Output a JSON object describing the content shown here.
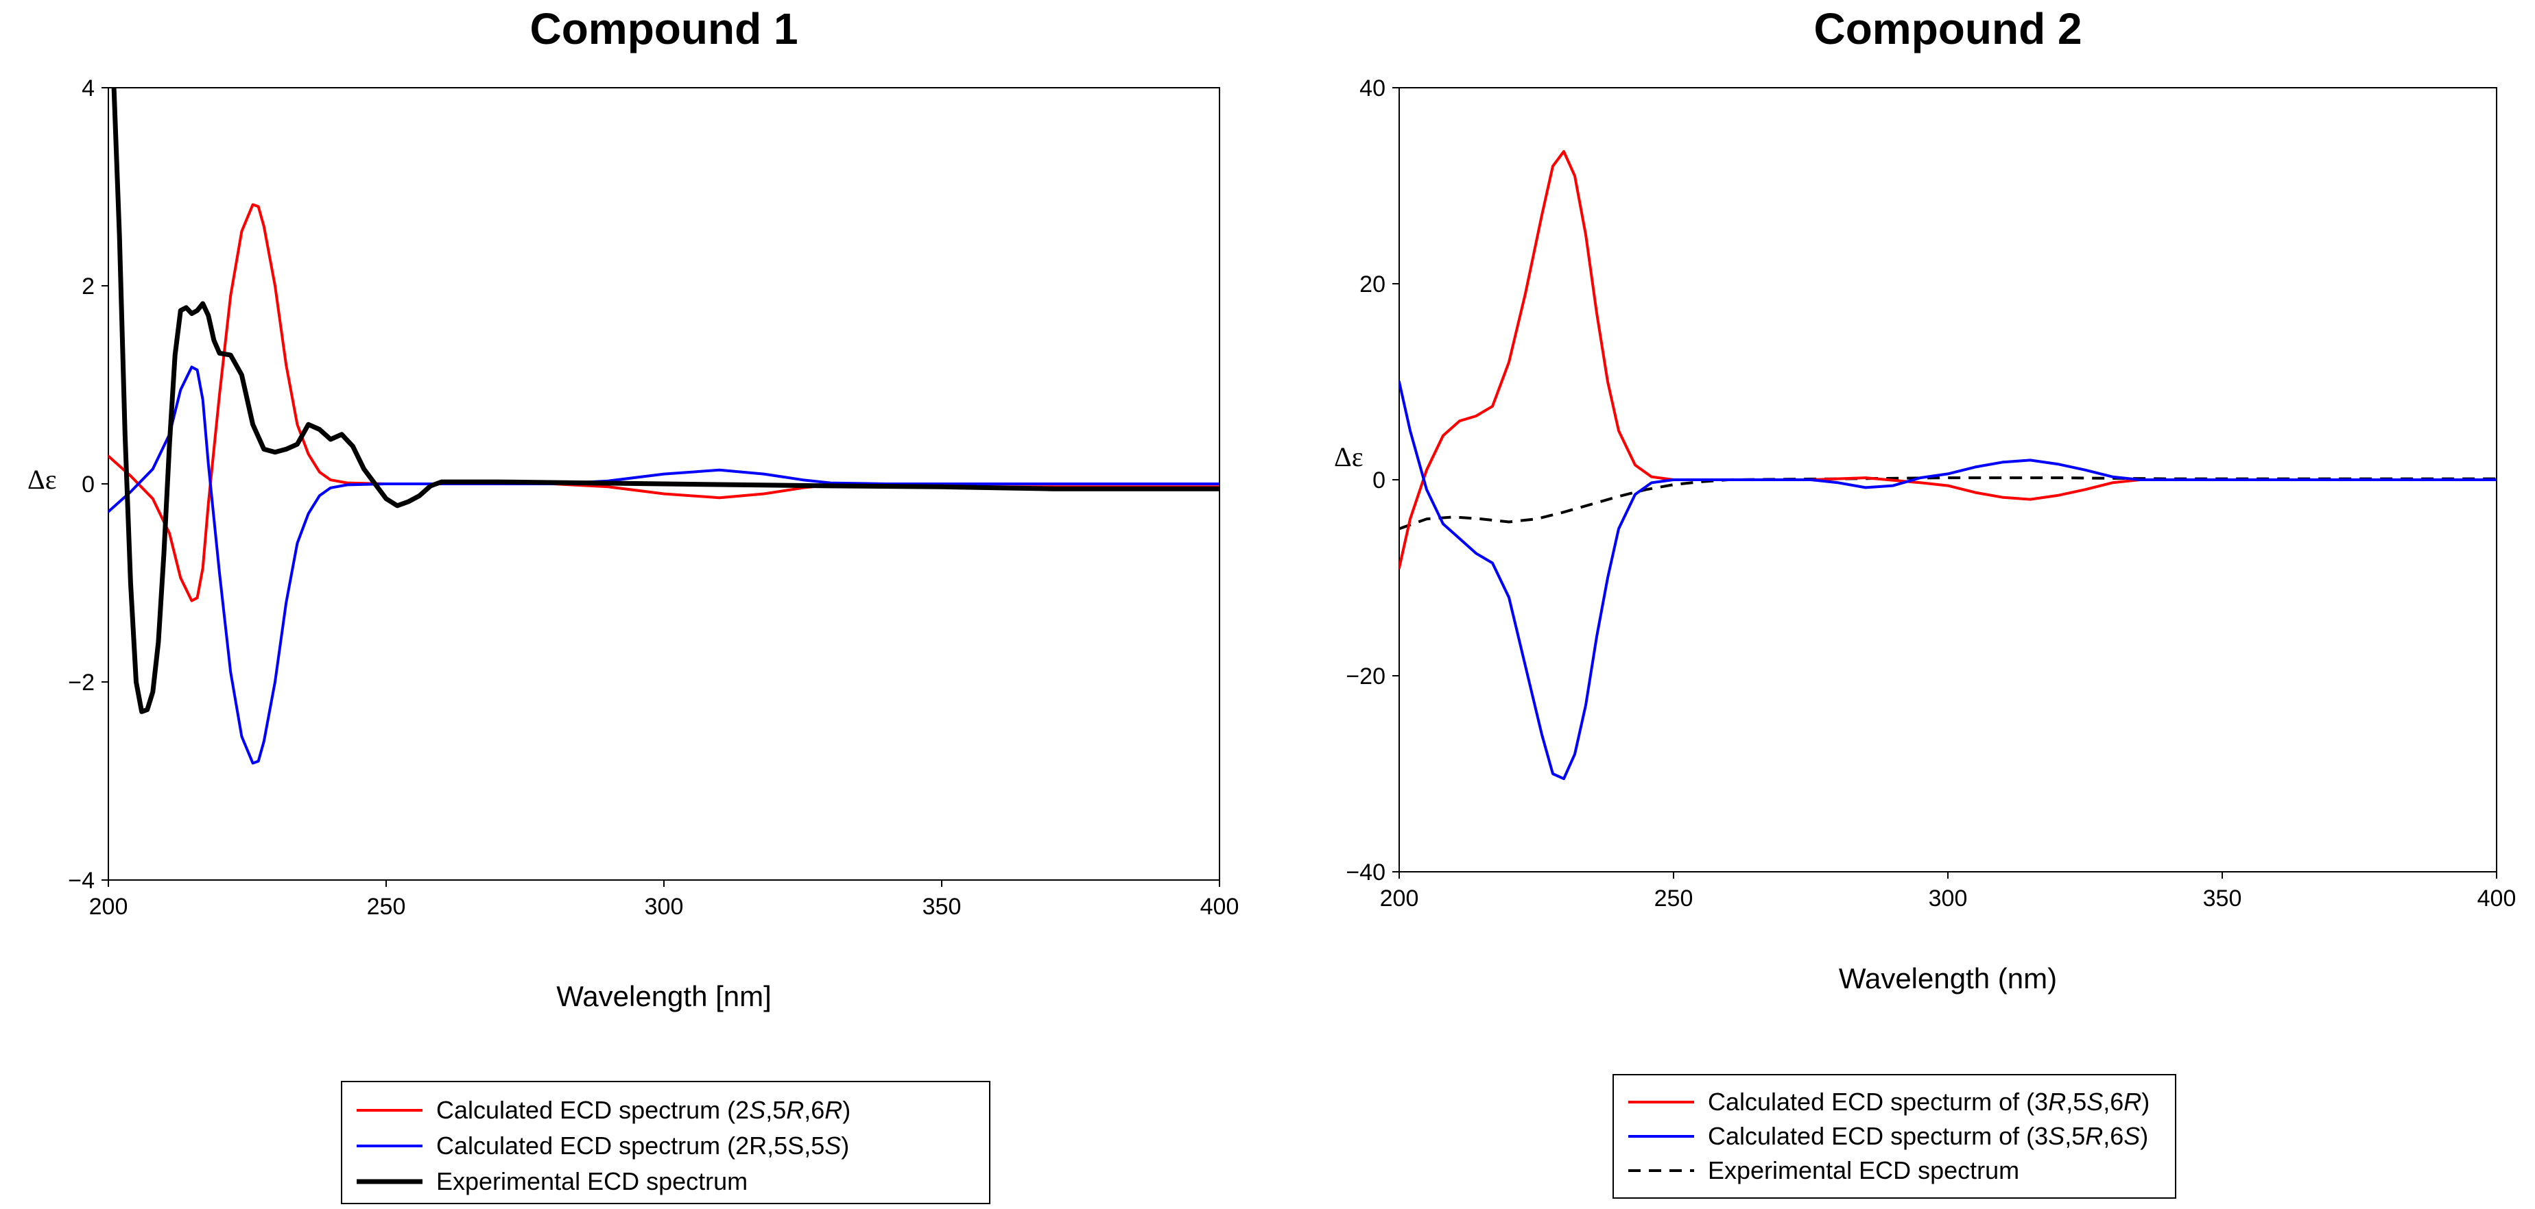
{
  "chart_data": [
    {
      "type": "line",
      "title": "Compound 1",
      "xlabel": "Wavelength [nm]",
      "ylabel": "Δε",
      "xlim": [
        200,
        400
      ],
      "ylim": [
        -4,
        4
      ],
      "xticks": [
        "200",
        "250",
        "300",
        "350",
        "400"
      ],
      "yticks": [
        "4",
        "2",
        "0",
        "−2",
        "−4"
      ],
      "series": [
        {
          "name": "Calculated ECD spectrum (2S,5R,6R)",
          "legend_parts": [
            [
              "Calculated ECD spectrum (2",
              false
            ],
            [
              "S",
              true
            ],
            [
              ",5",
              false
            ],
            [
              "R",
              true
            ],
            [
              ",6",
              false
            ],
            [
              "R",
              true
            ],
            [
              ")",
              false
            ]
          ],
          "color": "#ff0000",
          "style": "solid",
          "points": [
            [
              200,
              0.28
            ],
            [
              204,
              0.08
            ],
            [
              208,
              -0.15
            ],
            [
              211,
              -0.5
            ],
            [
              213,
              -0.95
            ],
            [
              215,
              -1.18
            ],
            [
              216,
              -1.15
            ],
            [
              217,
              -0.85
            ],
            [
              218,
              -0.2
            ],
            [
              220,
              0.9
            ],
            [
              222,
              1.9
            ],
            [
              224,
              2.55
            ],
            [
              226,
              2.82
            ],
            [
              227,
              2.8
            ],
            [
              228,
              2.6
            ],
            [
              230,
              2.0
            ],
            [
              232,
              1.2
            ],
            [
              234,
              0.6
            ],
            [
              236,
              0.3
            ],
            [
              238,
              0.12
            ],
            [
              240,
              0.04
            ],
            [
              243,
              0.01
            ],
            [
              250,
              0.0
            ],
            [
              280,
              0.0
            ],
            [
              290,
              -0.03
            ],
            [
              300,
              -0.1
            ],
            [
              310,
              -0.14
            ],
            [
              318,
              -0.1
            ],
            [
              325,
              -0.04
            ],
            [
              330,
              -0.01
            ],
            [
              340,
              -0.03
            ],
            [
              360,
              -0.03
            ],
            [
              400,
              -0.03
            ]
          ]
        },
        {
          "name": "Calculated ECD spectrum (2R,5S,5S)",
          "legend_parts": [
            [
              "Calculated ECD spectrum (2R,5S,5",
              false
            ],
            [
              "S",
              true
            ],
            [
              ")",
              false
            ]
          ],
          "color": "#0000ff",
          "style": "solid",
          "points": [
            [
              200,
              -0.28
            ],
            [
              204,
              -0.08
            ],
            [
              208,
              0.15
            ],
            [
              211,
              0.5
            ],
            [
              213,
              0.95
            ],
            [
              215,
              1.18
            ],
            [
              216,
              1.15
            ],
            [
              217,
              0.85
            ],
            [
              218,
              0.2
            ],
            [
              220,
              -0.9
            ],
            [
              222,
              -1.9
            ],
            [
              224,
              -2.55
            ],
            [
              226,
              -2.82
            ],
            [
              227,
              -2.8
            ],
            [
              228,
              -2.6
            ],
            [
              230,
              -2.0
            ],
            [
              232,
              -1.2
            ],
            [
              234,
              -0.6
            ],
            [
              236,
              -0.3
            ],
            [
              238,
              -0.12
            ],
            [
              240,
              -0.04
            ],
            [
              243,
              -0.01
            ],
            [
              250,
              0.0
            ],
            [
              280,
              0.0
            ],
            [
              290,
              0.03
            ],
            [
              300,
              0.1
            ],
            [
              310,
              0.14
            ],
            [
              318,
              0.1
            ],
            [
              325,
              0.04
            ],
            [
              330,
              0.01
            ],
            [
              340,
              0.0
            ],
            [
              400,
              0.0
            ]
          ]
        },
        {
          "name": "Experimental ECD spectrum",
          "legend_parts": [
            [
              "Experimental ECD spectrum",
              false
            ]
          ],
          "color": "#000000",
          "style": "bold",
          "points": [
            [
              201,
              4.0
            ],
            [
              202,
              2.5
            ],
            [
              203,
              0.5
            ],
            [
              204,
              -1.0
            ],
            [
              205,
              -2.0
            ],
            [
              206,
              -2.3
            ],
            [
              207,
              -2.28
            ],
            [
              208,
              -2.1
            ],
            [
              209,
              -1.6
            ],
            [
              210,
              -0.7
            ],
            [
              211,
              0.4
            ],
            [
              212,
              1.3
            ],
            [
              213,
              1.75
            ],
            [
              214,
              1.78
            ],
            [
              215,
              1.72
            ],
            [
              216,
              1.75
            ],
            [
              217,
              1.82
            ],
            [
              218,
              1.7
            ],
            [
              219,
              1.45
            ],
            [
              220,
              1.32
            ],
            [
              222,
              1.3
            ],
            [
              224,
              1.1
            ],
            [
              226,
              0.6
            ],
            [
              228,
              0.35
            ],
            [
              230,
              0.32
            ],
            [
              232,
              0.35
            ],
            [
              234,
              0.4
            ],
            [
              236,
              0.6
            ],
            [
              238,
              0.55
            ],
            [
              240,
              0.45
            ],
            [
              242,
              0.5
            ],
            [
              244,
              0.38
            ],
            [
              246,
              0.15
            ],
            [
              248,
              0.0
            ],
            [
              250,
              -0.15
            ],
            [
              252,
              -0.22
            ],
            [
              254,
              -0.18
            ],
            [
              256,
              -0.12
            ],
            [
              258,
              -0.02
            ],
            [
              260,
              0.02
            ],
            [
              270,
              0.02
            ],
            [
              300,
              0.0
            ],
            [
              330,
              -0.02
            ],
            [
              350,
              -0.03
            ],
            [
              370,
              -0.05
            ],
            [
              400,
              -0.05
            ]
          ]
        }
      ]
    },
    {
      "type": "line",
      "title": "Compound 2",
      "xlabel": "Wavelength (nm)",
      "ylabel": "Δε",
      "xlim": [
        200,
        400
      ],
      "ylim": [
        -40,
        40
      ],
      "xticks": [
        "200",
        "250",
        "300",
        "350",
        "400"
      ],
      "yticks": [
        "40",
        "20",
        "0",
        "−20",
        "−40"
      ],
      "series": [
        {
          "name": "Calculated ECD specturm of (3R,5S,6R)",
          "legend_parts": [
            [
              "Calculated ECD specturm of (3",
              false
            ],
            [
              "R",
              true
            ],
            [
              ",5",
              false
            ],
            [
              "S",
              true
            ],
            [
              ",6",
              false
            ],
            [
              "R",
              true
            ],
            [
              ")",
              false
            ]
          ],
          "color": "#ff0000",
          "style": "solid",
          "points": [
            [
              200,
              -9
            ],
            [
              202,
              -4
            ],
            [
              205,
              1
            ],
            [
              208,
              4.5
            ],
            [
              211,
              6
            ],
            [
              214,
              6.5
            ],
            [
              217,
              7.5
            ],
            [
              220,
              12
            ],
            [
              223,
              19
            ],
            [
              226,
              27
            ],
            [
              228,
              32
            ],
            [
              230,
              33.5
            ],
            [
              232,
              31
            ],
            [
              234,
              25
            ],
            [
              236,
              17
            ],
            [
              238,
              10
            ],
            [
              240,
              5
            ],
            [
              243,
              1.5
            ],
            [
              246,
              0.3
            ],
            [
              250,
              0
            ],
            [
              275,
              0
            ],
            [
              285,
              0.2
            ],
            [
              295,
              -0.3
            ],
            [
              300,
              -0.6
            ],
            [
              305,
              -1.3
            ],
            [
              310,
              -1.8
            ],
            [
              315,
              -2.0
            ],
            [
              320,
              -1.6
            ],
            [
              325,
              -1
            ],
            [
              330,
              -0.3
            ],
            [
              335,
              0
            ],
            [
              400,
              0
            ]
          ]
        },
        {
          "name": "Calculated ECD specturm of (3S,5R,6S)",
          "legend_parts": [
            [
              "Calculated ECD specturm of (3",
              false
            ],
            [
              "S",
              true
            ],
            [
              ",5",
              false
            ],
            [
              "R",
              true
            ],
            [
              ",6",
              false
            ],
            [
              "S",
              true
            ],
            [
              ")",
              false
            ]
          ],
          "color": "#0000ff",
          "style": "solid",
          "points": [
            [
              200,
              10
            ],
            [
              202,
              5
            ],
            [
              205,
              -1
            ],
            [
              208,
              -4.5
            ],
            [
              211,
              -6
            ],
            [
              214,
              -7.5
            ],
            [
              217,
              -8.5
            ],
            [
              220,
              -12
            ],
            [
              223,
              -19
            ],
            [
              226,
              -26
            ],
            [
              228,
              -30
            ],
            [
              230,
              -30.5
            ],
            [
              232,
              -28
            ],
            [
              234,
              -23
            ],
            [
              236,
              -16
            ],
            [
              238,
              -10
            ],
            [
              240,
              -5
            ],
            [
              243,
              -1.5
            ],
            [
              246,
              -0.3
            ],
            [
              250,
              0
            ],
            [
              275,
              0
            ],
            [
              280,
              -0.3
            ],
            [
              285,
              -0.8
            ],
            [
              290,
              -0.6
            ],
            [
              295,
              0.2
            ],
            [
              300,
              0.6
            ],
            [
              305,
              1.3
            ],
            [
              310,
              1.8
            ],
            [
              315,
              2.0
            ],
            [
              320,
              1.6
            ],
            [
              325,
              1.0
            ],
            [
              330,
              0.3
            ],
            [
              335,
              0
            ],
            [
              400,
              0
            ]
          ]
        },
        {
          "name": "Experimental ECD spectrum",
          "legend_parts": [
            [
              "Experimental ECD spectrum",
              false
            ]
          ],
          "color": "#000000",
          "style": "dashed",
          "points": [
            [
              200,
              -5
            ],
            [
              205,
              -4
            ],
            [
              210,
              -3.8
            ],
            [
              215,
              -4
            ],
            [
              220,
              -4.3
            ],
            [
              225,
              -4
            ],
            [
              230,
              -3.3
            ],
            [
              235,
              -2.5
            ],
            [
              240,
              -1.7
            ],
            [
              245,
              -1
            ],
            [
              250,
              -0.5
            ],
            [
              255,
              -0.2
            ],
            [
              260,
              0
            ],
            [
              280,
              0.1
            ],
            [
              300,
              0.2
            ],
            [
              320,
              0.2
            ],
            [
              340,
              0.1
            ],
            [
              400,
              0.1
            ]
          ]
        }
      ]
    }
  ]
}
